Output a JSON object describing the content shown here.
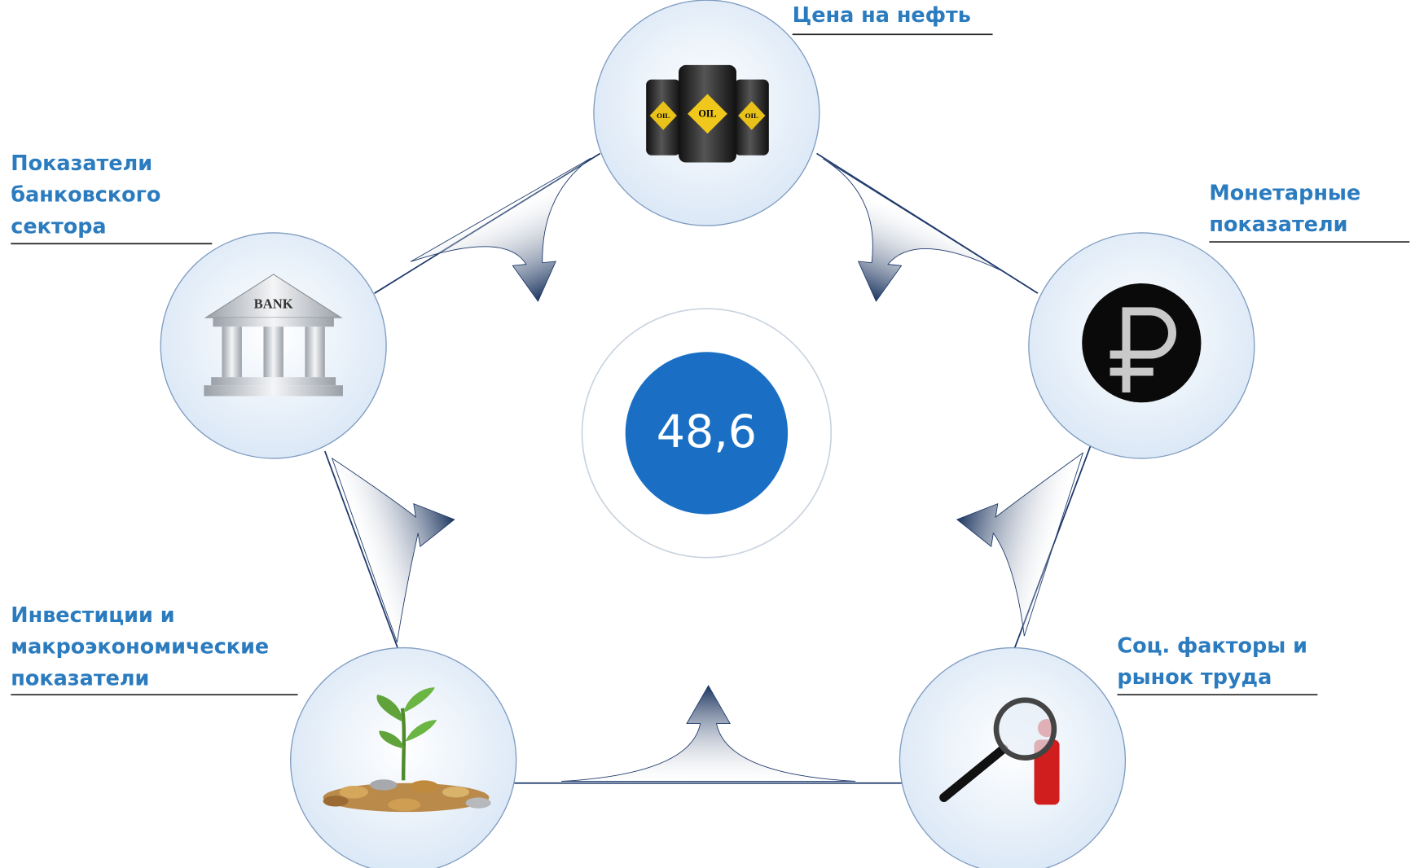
{
  "center_value": "48,6",
  "nodes": [
    {
      "label_lines": [
        "Цена на нефть"
      ]
    },
    {
      "label_lines": [
        "Показатели",
        "банковского",
        "сектора"
      ]
    },
    {
      "label_lines": [
        "Монетарные",
        "показатели"
      ]
    },
    {
      "label_lines": [
        "Инвестиции и",
        "макроэкономические",
        "показатели"
      ]
    },
    {
      "label_lines": [
        "Соц. факторы и",
        "рынок труда"
      ]
    }
  ],
  "icons": {
    "oil": "OIL",
    "bank": "BANK"
  }
}
